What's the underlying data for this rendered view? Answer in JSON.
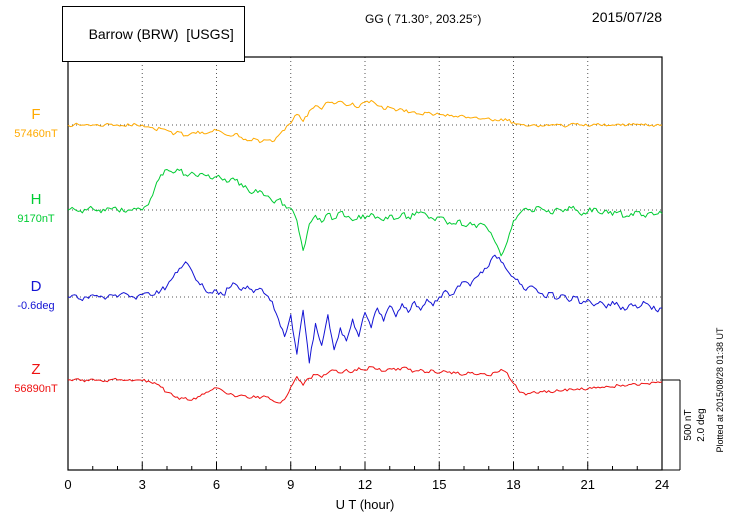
{
  "header": {
    "station": "Barrow (BRW)  [USGS]",
    "coords": "GG ( 71.30°, 203.25°)",
    "date": "2015/07/28"
  },
  "scale_bar_labels": {
    "nt": "500 nT",
    "deg": "2.0 deg"
  },
  "plotted_at": "Plotted at 2015/08/28 01:38 UT",
  "chart_data": {
    "type": "line",
    "title": "Barrow (BRW) [USGS] magnetogram 2015/07/28",
    "xlabel": "U T (hour)",
    "x_range": [
      0,
      24
    ],
    "x_step_hours": 0.25,
    "xticks": [
      0,
      3,
      6,
      9,
      12,
      15,
      18,
      21,
      24
    ],
    "scale_bar": {
      "nT_per_division": 500,
      "deg_per_division": 2.0
    },
    "series": [
      {
        "name": "F",
        "unit": "nT",
        "base_value": "57460nT",
        "color": "#ffaa00",
        "offsets": [
          0,
          2,
          -2,
          3,
          0,
          -3,
          2,
          5,
          0,
          -5,
          -2,
          3,
          0,
          -10,
          -25,
          -20,
          -30,
          -55,
          -40,
          -60,
          -45,
          -35,
          -50,
          -40,
          -30,
          -45,
          -60,
          -50,
          -70,
          -90,
          -75,
          -100,
          -85,
          -95,
          -60,
          -30,
          10,
          60,
          20,
          80,
          110,
          90,
          130,
          120,
          135,
          110,
          125,
          100,
          130,
          140,
          110,
          90,
          100,
          80,
          90,
          70,
          75,
          60,
          70,
          55,
          60,
          50,
          55,
          45,
          50,
          40,
          45,
          35,
          40,
          30,
          35,
          25,
          15,
          5,
          -5,
          0,
          -10,
          -5,
          0,
          5,
          -5,
          0,
          5,
          0,
          -5,
          5,
          0,
          -5,
          0,
          5,
          -5,
          0,
          5,
          0,
          -5,
          0,
          0
        ]
      },
      {
        "name": "H",
        "unit": "nT",
        "base_value": "9170nT",
        "color": "#00cc33",
        "offsets": [
          0,
          5,
          -5,
          0,
          8,
          0,
          -5,
          5,
          0,
          -8,
          0,
          5,
          0,
          30,
          120,
          200,
          230,
          210,
          225,
          200,
          215,
          190,
          200,
          180,
          190,
          170,
          160,
          170,
          150,
          120,
          100,
          110,
          80,
          50,
          60,
          30,
          10,
          -60,
          -230,
          -80,
          -30,
          -70,
          -20,
          -50,
          -10,
          -40,
          -60,
          -30,
          -50,
          -20,
          -40,
          -60,
          -30,
          -50,
          -20,
          -40,
          -30,
          -10,
          -30,
          -50,
          -40,
          -60,
          -80,
          -60,
          -90,
          -70,
          -100,
          -80,
          -120,
          -180,
          -260,
          -180,
          -60,
          -20,
          10,
          -10,
          20,
          0,
          -20,
          10,
          -10,
          20,
          0,
          -30,
          -10,
          10,
          -20,
          0,
          -30,
          -10,
          -40,
          -20,
          -10,
          -30,
          -15,
          -25,
          -20
        ]
      },
      {
        "name": "D",
        "unit": "deg",
        "base_value": "-0.6deg",
        "color": "#1414d4",
        "offsets": [
          0,
          0.05,
          -0.05,
          0,
          0.05,
          0,
          -0.05,
          0.05,
          0,
          0.1,
          0,
          -0.05,
          0.05,
          0.1,
          0.05,
          0.15,
          0.25,
          0.45,
          0.65,
          0.8,
          0.6,
          0.35,
          0.2,
          0.1,
          0.15,
          0.05,
          0.2,
          0.3,
          0.15,
          0.25,
          0.1,
          0.2,
          0.05,
          -0.1,
          -0.5,
          -0.9,
          -0.4,
          -1.3,
          -0.3,
          -1.5,
          -0.6,
          -1.1,
          -0.4,
          -1.2,
          -0.7,
          -1.0,
          -0.5,
          -0.9,
          -0.35,
          -0.7,
          -0.25,
          -0.55,
          -0.2,
          -0.45,
          -0.15,
          -0.35,
          -0.1,
          -0.3,
          -0.05,
          -0.2,
          0,
          0.15,
          0.05,
          0.25,
          0.35,
          0.25,
          0.45,
          0.55,
          0.7,
          0.95,
          0.8,
          0.6,
          0.45,
          0.3,
          0.15,
          0.25,
          0.1,
          0,
          0.1,
          -0.05,
          0.05,
          -0.1,
          0,
          -0.15,
          -0.05,
          -0.2,
          -0.1,
          -0.25,
          -0.1,
          -0.2,
          -0.3,
          -0.15,
          -0.25,
          -0.1,
          -0.2,
          -0.3,
          -0.25
        ]
      },
      {
        "name": "Z",
        "unit": "nT",
        "base_value": "56890nT",
        "color": "#ee1111",
        "offsets": [
          0,
          3,
          -3,
          0,
          5,
          0,
          -5,
          3,
          0,
          -3,
          3,
          0,
          -3,
          -5,
          -15,
          -40,
          -70,
          -90,
          -110,
          -100,
          -115,
          -95,
          -80,
          -60,
          -45,
          -60,
          -80,
          -95,
          -85,
          -100,
          -90,
          -105,
          -95,
          -115,
          -130,
          -110,
          -40,
          20,
          -30,
          10,
          30,
          15,
          40,
          55,
          40,
          60,
          45,
          70,
          55,
          75,
          60,
          50,
          65,
          55,
          70,
          60,
          50,
          60,
          45,
          55,
          40,
          50,
          35,
          45,
          30,
          40,
          30,
          35,
          25,
          45,
          60,
          40,
          -20,
          -70,
          -85,
          -70,
          -75,
          -60,
          -70,
          -55,
          -60,
          -50,
          -55,
          -45,
          -50,
          -40,
          -45,
          -35,
          -40,
          -30,
          -35,
          -25,
          -30,
          -20,
          -25,
          -15,
          -10
        ]
      }
    ]
  }
}
